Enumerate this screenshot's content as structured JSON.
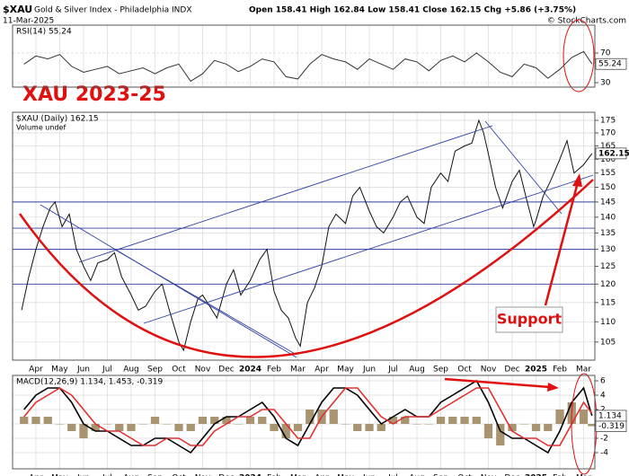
{
  "header": {
    "symbol": "$XAU",
    "name": "Gold & Silver Index - Philadelphia INDX",
    "date": "11-Mar-2025",
    "quote": "Open 158.41 High 162.84 Low 158.41 Close 162.15 Chg +5.86 (+3.75%)",
    "source": "© StockCharts.com"
  },
  "chart_data": [
    {
      "type": "line",
      "legend": "RSI(14) 55.24",
      "x": [
        0.5,
        1,
        1.5,
        2,
        2.5,
        3,
        3.5,
        4,
        4.5,
        5,
        5.5,
        6,
        6.5,
        7,
        7.5,
        8,
        8.5,
        9,
        9.5,
        10,
        10.5,
        11,
        11.5,
        12,
        12.5,
        13,
        13.5,
        14,
        14.5,
        15,
        15.5,
        16,
        16.5,
        17,
        17.5,
        18,
        18.5,
        19,
        19.5,
        20,
        20.5,
        21,
        21.5,
        22,
        22.5,
        23,
        23.5,
        24,
        24.35
      ],
      "series": [
        {
          "color": "#333333",
          "values": [
            55,
            66,
            62,
            68,
            52,
            44,
            48,
            52,
            42,
            46,
            50,
            42,
            50,
            55,
            32,
            42,
            60,
            55,
            45,
            52,
            62,
            58,
            38,
            35,
            55,
            68,
            62,
            58,
            48,
            62,
            55,
            48,
            62,
            58,
            46,
            60,
            66,
            58,
            70,
            58,
            44,
            38,
            55,
            50,
            36,
            48,
            64,
            72,
            55.24
          ]
        }
      ],
      "xlim": [
        0.02,
        24.47
      ],
      "ylim": [
        24,
        107.6
      ],
      "yticks": [
        30,
        70
      ],
      "grid": true
    },
    {
      "type": "line",
      "legend": "$XAU (Daily) 162.15",
      "legend2": "Volume undef",
      "log_scale": true,
      "annotations": [
        "XAU 2023-25",
        "Support"
      ],
      "x": [
        0.4,
        0.7,
        1.0,
        1.3,
        1.6,
        1.8,
        2.1,
        2.4,
        2.7,
        3.0,
        3.3,
        3.6,
        4.0,
        4.3,
        4.6,
        5.0,
        5.3,
        5.6,
        6.0,
        6.3,
        6.6,
        7.0,
        7.2,
        7.5,
        7.8,
        8.0,
        8.3,
        8.6,
        9.0,
        9.3,
        9.6,
        10.0,
        10.4,
        10.7,
        11.0,
        11.3,
        11.6,
        11.9,
        12.1,
        12.4,
        12.7,
        13.0,
        13.3,
        13.6,
        14.0,
        14.3,
        14.6,
        15.0,
        15.3,
        15.6,
        16.0,
        16.3,
        16.6,
        17.0,
        17.3,
        17.6,
        18.0,
        18.3,
        18.6,
        19.0,
        19.3,
        19.6,
        19.8,
        20.0,
        20.3,
        20.6,
        21.0,
        21.3,
        21.6,
        21.9,
        22.0,
        22.3,
        22.6,
        23.0,
        23.3,
        23.6,
        24.0,
        24.35
      ],
      "series": [
        {
          "color": "#111111",
          "values": [
            113,
            122,
            130,
            137,
            143,
            145,
            137,
            141,
            130,
            125,
            121,
            126,
            127,
            129,
            122,
            117,
            113,
            114,
            118,
            120,
            113,
            105,
            103,
            110,
            116,
            117,
            114,
            111,
            120,
            124,
            117,
            121,
            127,
            130,
            118,
            113,
            111,
            106,
            104,
            115,
            119,
            125,
            137,
            141,
            138,
            147,
            150,
            142,
            137,
            135,
            140,
            145,
            147,
            140,
            138,
            150,
            155,
            152,
            163,
            165,
            166,
            175,
            170,
            162,
            150,
            143,
            152,
            156,
            146,
            137,
            139,
            147,
            152,
            160,
            167,
            155,
            158,
            162.15
          ]
        }
      ],
      "hlines": [
        145,
        136.5,
        130,
        120
      ],
      "xlim": [
        0.02,
        24.47
      ],
      "ylim": [
        100.7,
        178.3
      ],
      "yticks": [
        105,
        110,
        115,
        120,
        125,
        130,
        135,
        140,
        145,
        150,
        155,
        160,
        165,
        170,
        175
      ],
      "xticks": [
        {
          "value": 1,
          "label": "Apr"
        },
        {
          "value": 2,
          "label": "May"
        },
        {
          "value": 3,
          "label": "Jun"
        },
        {
          "value": 4,
          "label": "Jul"
        },
        {
          "value": 5,
          "label": "Aug"
        },
        {
          "value": 6,
          "label": "Sep"
        },
        {
          "value": 7,
          "label": "Oct"
        },
        {
          "value": 8,
          "label": "Nov"
        },
        {
          "value": 9,
          "label": "Dec"
        },
        {
          "value": 10,
          "label": "2024"
        },
        {
          "value": 11,
          "label": "Feb"
        },
        {
          "value": 12,
          "label": "Mar"
        },
        {
          "value": 13,
          "label": "Apr"
        },
        {
          "value": 14,
          "label": "May"
        },
        {
          "value": 15,
          "label": "Jun"
        },
        {
          "value": 16,
          "label": "Jul"
        },
        {
          "value": 17,
          "label": "Aug"
        },
        {
          "value": 18,
          "label": "Sep"
        },
        {
          "value": 19,
          "label": "Oct"
        },
        {
          "value": 20,
          "label": "Nov"
        },
        {
          "value": 21,
          "label": "Dec"
        },
        {
          "value": 22,
          "label": "2025"
        },
        {
          "value": 23,
          "label": "Feb"
        },
        {
          "value": 24,
          "label": "Mar"
        }
      ],
      "grid": true
    },
    {
      "type": "line",
      "legend": "MACD(12,26,9) 1.134, 1.453, -0.319",
      "x": [
        0.5,
        1,
        1.5,
        2,
        2.5,
        3,
        3.5,
        4,
        4.5,
        5,
        5.5,
        6,
        6.5,
        7,
        7.5,
        8,
        8.5,
        9,
        9.5,
        10,
        10.5,
        11,
        11.5,
        12,
        12.5,
        13,
        13.5,
        14,
        14.5,
        15,
        15.5,
        16,
        16.5,
        17,
        17.5,
        18,
        18.5,
        19,
        19.5,
        20,
        20.5,
        21,
        21.5,
        22,
        22.5,
        23,
        23.5,
        24,
        24.35
      ],
      "series": [
        {
          "color": "#a89470",
          "kind": "bar",
          "values": [
            1,
            1,
            1,
            0,
            -1,
            -2,
            -1,
            0,
            -1,
            -1,
            0,
            1,
            0,
            -1,
            -1,
            1,
            1,
            1,
            0,
            1,
            1,
            -1,
            -2,
            -1,
            2,
            2,
            2,
            0,
            -1,
            -1,
            -1,
            1,
            1,
            0,
            0,
            1,
            1,
            1,
            1,
            -2,
            -3,
            -1,
            0,
            -1,
            -1,
            2,
            3,
            2,
            -0.319
          ]
        },
        {
          "color": "#000000",
          "values": [
            2,
            4,
            5,
            5,
            3,
            0,
            -1,
            -1,
            -2,
            -3,
            -3,
            -2,
            -2,
            -3,
            -4,
            -2,
            0,
            1,
            1,
            2,
            3,
            1,
            -2,
            -3,
            0,
            3,
            5,
            5,
            4,
            2,
            0,
            1,
            2,
            1,
            1,
            3,
            4,
            5,
            6,
            3,
            -1,
            -2,
            -2,
            -3,
            -4,
            -1,
            3,
            5,
            1.134
          ]
        },
        {
          "color": "#e03030",
          "values": [
            1,
            3,
            4,
            5,
            4,
            2,
            0,
            -1,
            -1,
            -2,
            -3,
            -3,
            -2,
            -2,
            -3,
            -3,
            -1,
            0,
            1,
            1,
            2,
            2,
            0,
            -2,
            -2,
            1,
            3,
            5,
            5,
            3,
            1,
            0,
            1,
            1,
            1,
            2,
            3,
            4,
            5,
            5,
            2,
            -1,
            -2,
            -2,
            -3,
            -3,
            0,
            3,
            1.453
          ]
        }
      ],
      "xlim": [
        0.02,
        24.47
      ],
      "ylim": [
        -6.25,
        6.75
      ],
      "yticks": [
        -4,
        -2,
        0,
        2,
        4,
        6
      ],
      "xticks": [
        {
          "value": 1,
          "label": "Apr"
        },
        {
          "value": 2,
          "label": "May"
        },
        {
          "value": 3,
          "label": "Jun"
        },
        {
          "value": 4,
          "label": "Jul"
        },
        {
          "value": 5,
          "label": "Aug"
        },
        {
          "value": 6,
          "label": "Sep"
        },
        {
          "value": 7,
          "label": "Oct"
        },
        {
          "value": 8,
          "label": "Nov"
        },
        {
          "value": 9,
          "label": "Dec"
        },
        {
          "value": 10,
          "label": "2024"
        },
        {
          "value": 11,
          "label": "Feb"
        },
        {
          "value": 12,
          "label": "Mar"
        },
        {
          "value": 13,
          "label": "Apr"
        },
        {
          "value": 14,
          "label": "May"
        },
        {
          "value": 15,
          "label": "Jun"
        },
        {
          "value": 16,
          "label": "Jul"
        },
        {
          "value": 17,
          "label": "Aug"
        },
        {
          "value": 18,
          "label": "Sep"
        },
        {
          "value": 19,
          "label": "Oct"
        },
        {
          "value": 20,
          "label": "Nov"
        },
        {
          "value": 21,
          "label": "Dec"
        },
        {
          "value": 22,
          "label": "2025"
        },
        {
          "value": 23,
          "label": "Feb"
        },
        {
          "value": 24,
          "label": "Mar"
        }
      ],
      "grid": true
    }
  ]
}
